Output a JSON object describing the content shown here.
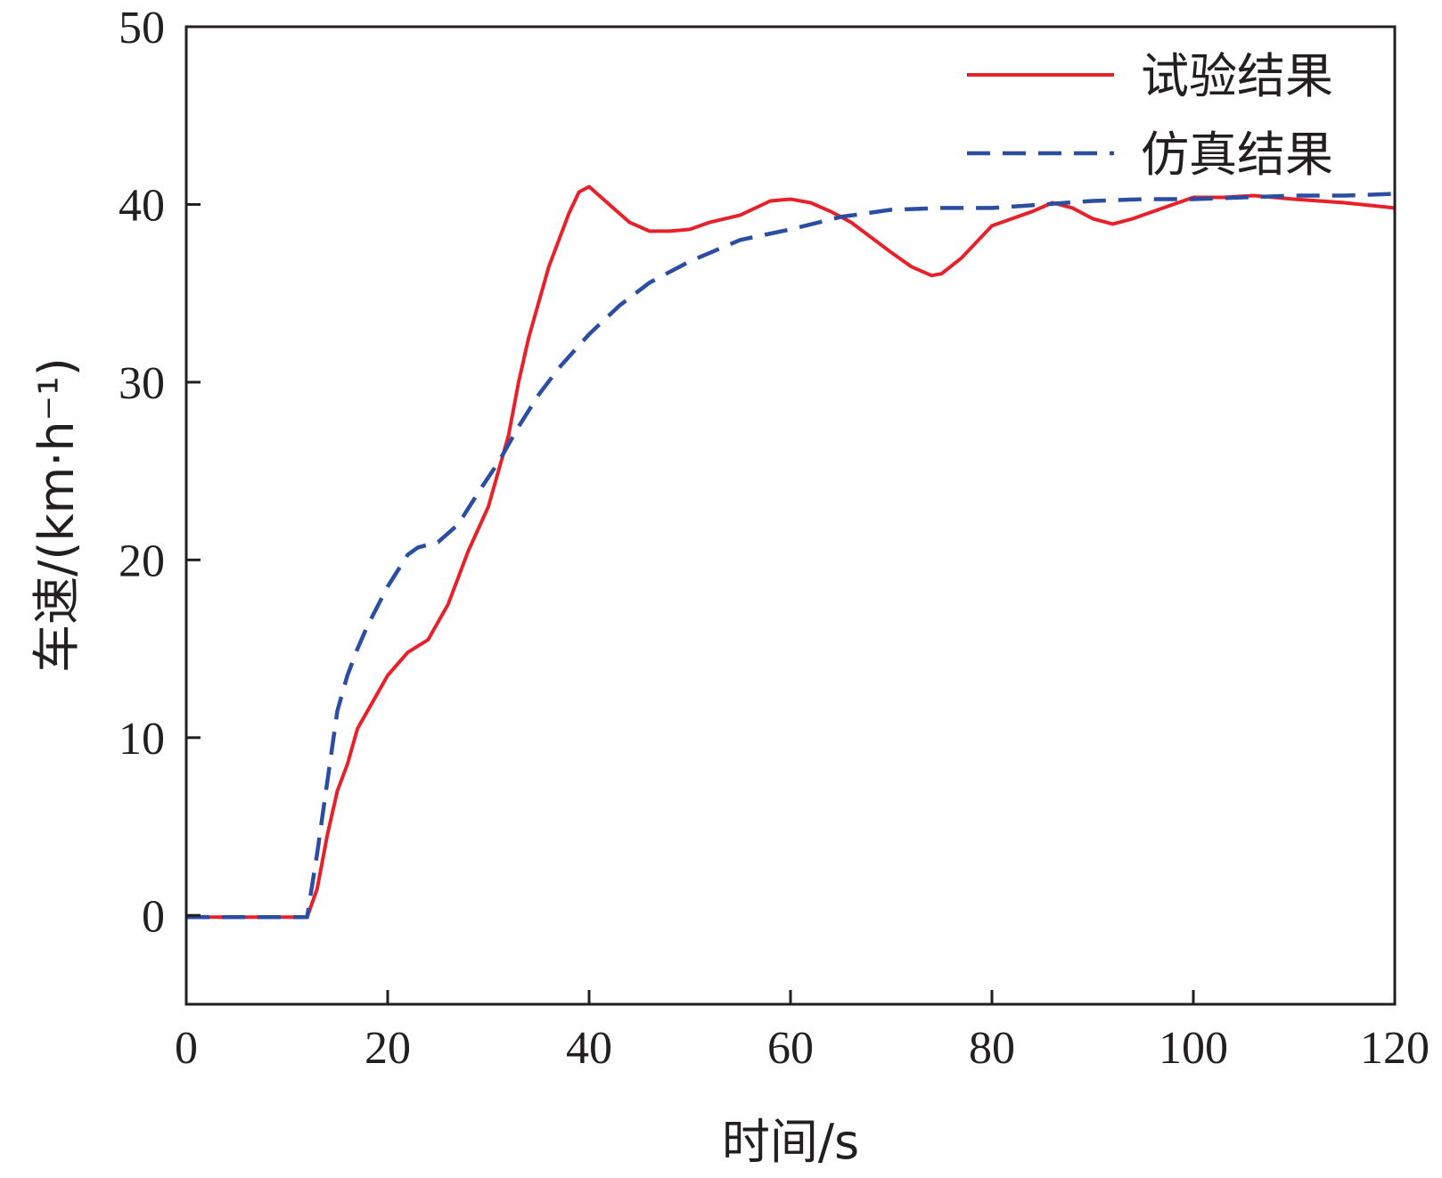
{
  "chart_data": {
    "type": "line",
    "title": "",
    "xlabel": "时间/s",
    "ylabel": "车速/(km·h⁻¹)",
    "xlim": [
      0,
      120
    ],
    "ylim": [
      -5,
      50
    ],
    "xticks": [
      0,
      20,
      40,
      60,
      80,
      100,
      120
    ],
    "yticks": [
      0,
      10,
      20,
      30,
      40,
      50
    ],
    "grid": false,
    "legend_position": "top-right",
    "series": [
      {
        "name": "试验结果",
        "style": "solid",
        "color": "#e8202a",
        "x": [
          0,
          12,
          13,
          14,
          15,
          16,
          17,
          18,
          20,
          22,
          24,
          26,
          28,
          30,
          32,
          33,
          34,
          36,
          38,
          39,
          40,
          41,
          44,
          46,
          48,
          50,
          52,
          55,
          58,
          60,
          62,
          64,
          66,
          70,
          72,
          74,
          75,
          77,
          80,
          82,
          84,
          86,
          88,
          90,
          92,
          94,
          97,
          100,
          103,
          106,
          110,
          115,
          120
        ],
        "y": [
          -0.1,
          -0.1,
          1.5,
          4.5,
          7,
          8.5,
          10.5,
          11.5,
          13.5,
          14.8,
          15.5,
          17.5,
          20.5,
          23,
          27,
          30,
          32.5,
          36.5,
          39.5,
          40.7,
          41,
          40.5,
          39,
          38.5,
          38.5,
          38.6,
          39,
          39.4,
          40.2,
          40.3,
          40.1,
          39.6,
          39,
          37.3,
          36.5,
          36,
          36.1,
          37,
          38.8,
          39.2,
          39.6,
          40.1,
          39.8,
          39.2,
          38.9,
          39.2,
          39.8,
          40.4,
          40.4,
          40.5,
          40.3,
          40.1,
          39.8
        ]
      },
      {
        "name": "仿真结果",
        "style": "dashed",
        "color": "#2b4ea2",
        "x": [
          0,
          12,
          13,
          14,
          15,
          16,
          17,
          18,
          20,
          22,
          23,
          25,
          27,
          29,
          31,
          33,
          35,
          37,
          40,
          43,
          46,
          50,
          55,
          60,
          65,
          70,
          75,
          80,
          85,
          90,
          95,
          100,
          105,
          110,
          115,
          120
        ],
        "y": [
          -0.1,
          -0.1,
          3.5,
          7.5,
          11.5,
          13.5,
          15,
          16.3,
          18.5,
          20.3,
          20.7,
          21,
          22,
          23.8,
          25.5,
          27.5,
          29.3,
          30.8,
          32.7,
          34.3,
          35.6,
          36.8,
          38,
          38.6,
          39.3,
          39.7,
          39.8,
          39.8,
          40,
          40.2,
          40.3,
          40.3,
          40.4,
          40.5,
          40.5,
          40.6
        ]
      }
    ]
  }
}
